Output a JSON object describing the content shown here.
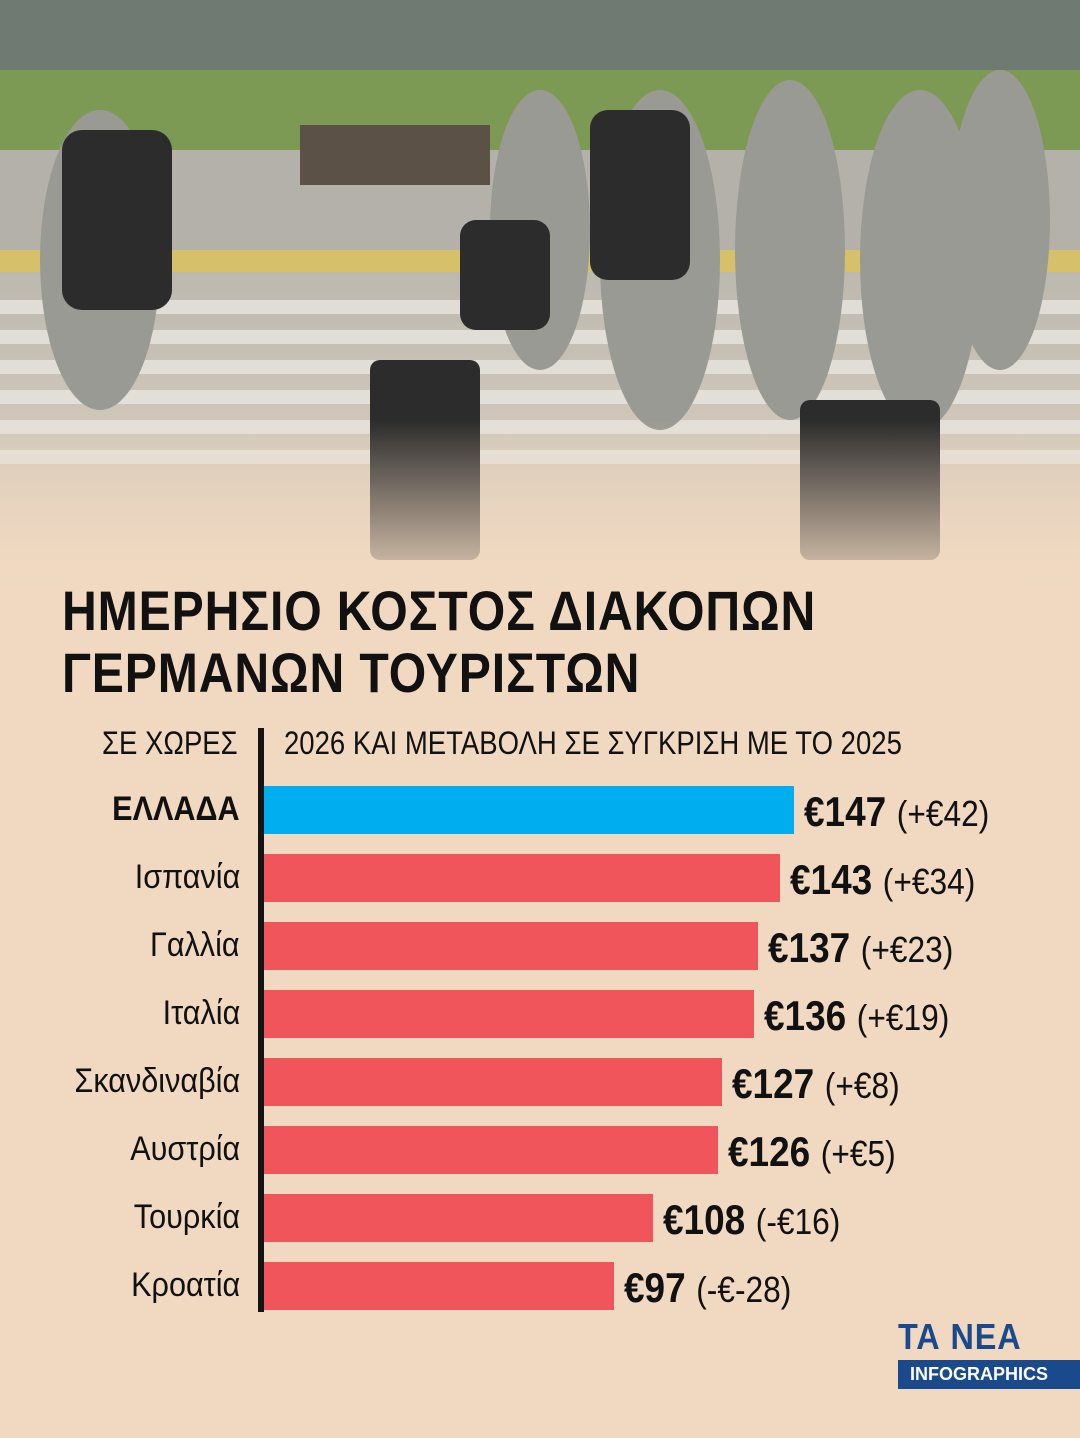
{
  "title": "ΗΜΕΡΗΣΙΟ ΚΟΣΤΟΣ ΔΙΑΚΟΠΩΝ\nΓΕΡΜΑΝΩΝ ΤΟΥΡΙΣΤΩΝ",
  "header_left": "ΣΕ ΧΩΡΕΣ",
  "header_right": "2026 ΚΑΙ ΜΕΤΑΒΟΛΗ ΣΕ ΣΥΓΚΡΙΣΗ ΜΕ ΤΟ 2025",
  "brand": {
    "name": "ΤΑ ΝΕΑ",
    "tag": "INFOGRAPHICS"
  },
  "colors": {
    "highlight": "#00aeef",
    "bar": "#f0555c",
    "background": "#f1d9c1"
  },
  "chart_data": {
    "type": "bar",
    "orientation": "horizontal",
    "categories": [
      "ΕΛΛΑΔΑ",
      "Ισπανία",
      "Γαλλία",
      "Ιταλία",
      "Σκανδιναβία",
      "Αυστρία",
      "Τουρκία",
      "Κροατία"
    ],
    "values": [
      147,
      143,
      137,
      136,
      127,
      126,
      108,
      97
    ],
    "value_labels": [
      "€147",
      "€143",
      "€137",
      "€136",
      "€127",
      "€126",
      "€108",
      "€97"
    ],
    "change_labels": [
      "(+€42)",
      "(+€34)",
      "(+€23)",
      "(+€19)",
      "(+€8)",
      "(+€5)",
      "(-€16)",
      "(-€-28)"
    ],
    "highlight_index": 0,
    "xlim": [
      0,
      147
    ]
  }
}
